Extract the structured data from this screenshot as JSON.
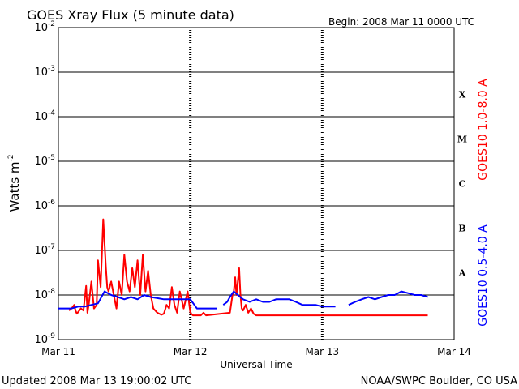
{
  "chart_data": {
    "type": "line",
    "title": "GOES Xray Flux (5 minute data)",
    "begin": "Begin:  2008 Mar 11 0000 UTC",
    "xlabel": "Universal Time",
    "ylabel_main": "Watts m",
    "ylabel_sup": "-2",
    "updated": "Updated 2008 Mar 13 19:00:02 UTC",
    "source": "NOAA/SWPC Boulder, CO USA",
    "x_ticks": [
      "Mar 11",
      "Mar 12",
      "Mar 13",
      "Mar 14"
    ],
    "x_range_days": [
      0,
      3
    ],
    "y_scale": "log",
    "y_ticks": [
      {
        "base": "10",
        "exp": "-2"
      },
      {
        "base": "10",
        "exp": "-3"
      },
      {
        "base": "10",
        "exp": "-4"
      },
      {
        "base": "10",
        "exp": "-5"
      },
      {
        "base": "10",
        "exp": "-6"
      },
      {
        "base": "10",
        "exp": "-7"
      },
      {
        "base": "10",
        "exp": "-8"
      },
      {
        "base": "10",
        "exp": "-9"
      }
    ],
    "y_range_log10": [
      -9,
      -2
    ],
    "flare_classes": [
      "X",
      "M",
      "C",
      "B",
      "A"
    ],
    "colors": {
      "long": "#ff0000",
      "short": "#0000ff",
      "grid": "#000000"
    },
    "series": [
      {
        "name": "GOES10 1.0-8.0 A",
        "color": "#ff0000",
        "x": [
          0.08,
          0.1,
          0.12,
          0.13,
          0.14,
          0.17,
          0.19,
          0.21,
          0.22,
          0.23,
          0.25,
          0.27,
          0.29,
          0.3,
          0.32,
          0.34,
          0.36,
          0.37,
          0.38,
          0.4,
          0.42,
          0.44,
          0.46,
          0.48,
          0.5,
          0.52,
          0.54,
          0.56,
          0.58,
          0.6,
          0.62,
          0.64,
          0.66,
          0.68,
          0.7,
          0.72,
          0.75,
          0.78,
          0.8,
          0.82,
          0.84,
          0.86,
          0.88,
          0.9,
          0.92,
          0.95,
          0.98,
          1.0,
          1.02,
          1.05,
          1.08,
          1.1,
          1.12,
          1.3,
          1.32,
          1.33,
          1.34,
          1.35,
          1.37,
          1.38,
          1.39,
          1.4,
          1.42,
          1.44,
          1.46,
          1.48,
          1.5,
          1.55,
          1.6,
          1.8,
          2.0,
          2.2,
          2.4,
          2.6,
          2.8
        ],
        "y": [
          4.5e-09,
          5e-09,
          6e-09,
          4.5e-09,
          3.8e-09,
          5e-09,
          4.5e-09,
          1.6e-08,
          4e-09,
          6e-09,
          2e-08,
          5e-09,
          6e-09,
          6e-08,
          1.5e-08,
          5e-07,
          4e-08,
          1.5e-08,
          1.2e-08,
          2e-08,
          1e-08,
          5e-09,
          2e-08,
          1e-08,
          8e-08,
          2e-08,
          1.2e-08,
          4e-08,
          1.5e-08,
          6e-08,
          1e-08,
          8e-08,
          1.2e-08,
          3.5e-08,
          1e-08,
          5e-09,
          4e-09,
          3.6e-09,
          3.8e-09,
          6e-09,
          5e-09,
          1.5e-08,
          6e-09,
          4e-09,
          1.2e-08,
          5e-09,
          1.2e-08,
          4e-09,
          3.5e-09,
          3.5e-09,
          3.5e-09,
          4e-09,
          3.5e-09,
          4e-09,
          1e-08,
          1.2e-08,
          2.5e-08,
          1e-08,
          4e-08,
          1e-08,
          5e-09,
          4.5e-09,
          6e-09,
          4e-09,
          5e-09,
          3.8e-09,
          3.5e-09,
          3.5e-09,
          3.5e-09,
          3.5e-09,
          3.5e-09,
          3.5e-09,
          3.5e-09,
          3.5e-09,
          3.5e-09
        ]
      },
      {
        "name": "GOES10 0.5-4.0 A",
        "color": "#0000ff",
        "x": [
          0.0,
          0.05,
          0.1,
          0.15,
          0.2,
          0.25,
          0.3,
          0.35,
          0.4,
          0.45,
          0.5,
          0.55,
          0.6,
          0.65,
          0.7,
          0.75,
          0.8,
          0.85,
          0.9,
          0.95,
          1.0,
          1.05,
          1.1,
          1.15,
          1.2,
          1.22,
          1.25,
          1.28,
          1.3,
          1.33,
          1.36,
          1.4,
          1.45,
          1.5,
          1.55,
          1.6,
          1.65,
          1.7,
          1.75,
          1.8,
          1.85,
          1.9,
          1.95,
          2.0,
          2.05,
          2.1,
          2.12,
          2.2,
          2.25,
          2.3,
          2.35,
          2.4,
          2.45,
          2.5,
          2.55,
          2.6,
          2.65,
          2.7,
          2.75,
          2.8
        ],
        "y": [
          5e-09,
          5e-09,
          5e-09,
          5.5e-09,
          5.5e-09,
          6e-09,
          6.5e-09,
          1.2e-08,
          1e-08,
          9e-09,
          8e-09,
          9e-09,
          8e-09,
          1e-08,
          9e-09,
          8.5e-09,
          8e-09,
          8e-09,
          8e-09,
          8e-09,
          8e-09,
          5e-09,
          5e-09,
          5e-09,
          5e-09,
          null,
          6e-09,
          7e-09,
          9e-09,
          1.2e-08,
          1e-08,
          8e-09,
          7e-09,
          8e-09,
          7e-09,
          7e-09,
          8e-09,
          8e-09,
          8e-09,
          7e-09,
          6e-09,
          6e-09,
          6e-09,
          5.5e-09,
          5.5e-09,
          5.5e-09,
          null,
          6e-09,
          7e-09,
          8e-09,
          9e-09,
          8e-09,
          9e-09,
          1e-08,
          1e-08,
          1.2e-08,
          1.1e-08,
          1e-08,
          1e-08,
          9e-09
        ]
      }
    ]
  }
}
